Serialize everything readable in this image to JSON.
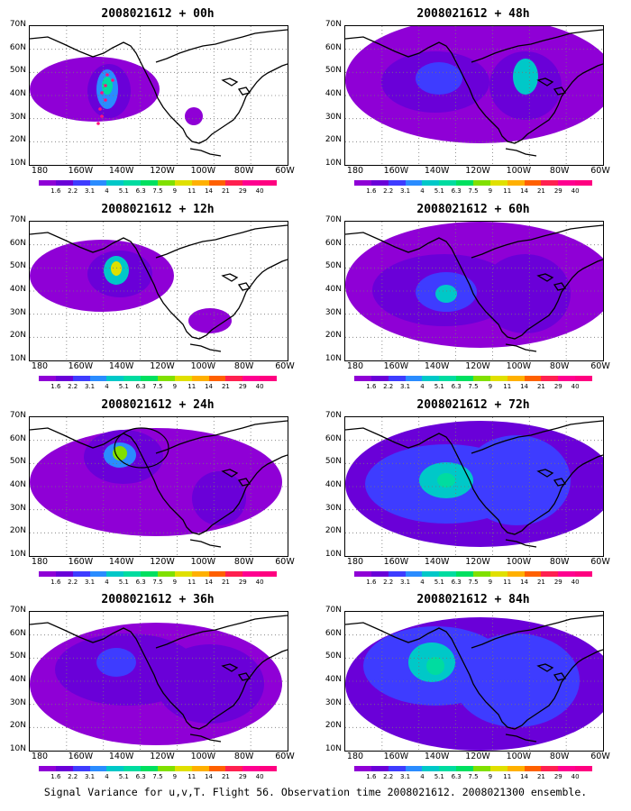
{
  "caption": "Signal Variance for u,v,T. Flight 56. Observation time 2008021612. 2008021300 ensemble.",
  "lat_labels": [
    "70N",
    "60N",
    "50N",
    "40N",
    "30N",
    "20N",
    "10N"
  ],
  "lon_labels": [
    "180",
    "160W",
    "140W",
    "120W",
    "100W",
    "80W",
    "60W"
  ],
  "colorbar_labels": [
    "1.6",
    "2.2",
    "3.1",
    "4",
    "5.1",
    "6.3",
    "7.5",
    "9",
    "11",
    "14",
    "21",
    "29",
    "40"
  ],
  "colorbar_colors": [
    "#8f00d6",
    "#6a00d8",
    "#3e3cff",
    "#2a8cff",
    "#00c8c8",
    "#00dca0",
    "#00e060",
    "#80e000",
    "#e0e000",
    "#ffb000",
    "#ff6000",
    "#ff2050",
    "#ff0090",
    "#ff0080"
  ],
  "panels": [
    {
      "title": "2008021612 + 00h",
      "forecast_hour": 0
    },
    {
      "title": "2008021612 + 48h",
      "forecast_hour": 48
    },
    {
      "title": "2008021612 + 12h",
      "forecast_hour": 12
    },
    {
      "title": "2008021612 + 60h",
      "forecast_hour": 60
    },
    {
      "title": "2008021612 + 24h",
      "forecast_hour": 24
    },
    {
      "title": "2008021612 + 72h",
      "forecast_hour": 72
    },
    {
      "title": "2008021612 + 36h",
      "forecast_hour": 36
    },
    {
      "title": "2008021612 + 84h",
      "forecast_hour": 84
    }
  ]
}
